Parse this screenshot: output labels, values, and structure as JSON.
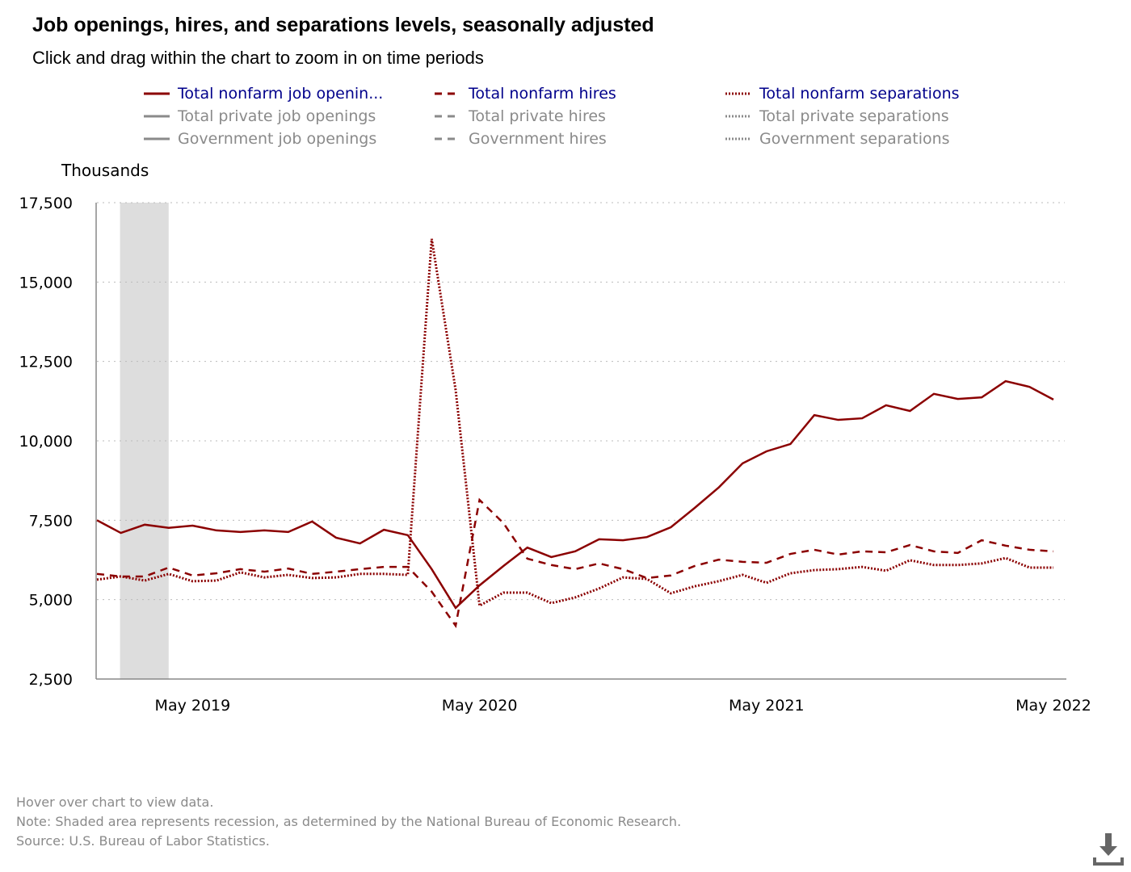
{
  "title": "Job openings, hires, and separations levels, seasonally adjusted",
  "subtitle": "Click and drag within the chart to zoom in on time periods",
  "legend": [
    {
      "label": "Total nonfarm job openin...",
      "style": "solid",
      "active": true
    },
    {
      "label": "Total nonfarm hires",
      "style": "dashed",
      "active": true
    },
    {
      "label": "Total nonfarm separations",
      "style": "dotted",
      "active": true
    },
    {
      "label": "Total private job openings",
      "style": "solid",
      "active": false
    },
    {
      "label": "Total private hires",
      "style": "dashed",
      "active": false
    },
    {
      "label": "Total private separations",
      "style": "dotted",
      "active": false
    },
    {
      "label": "Government job openings",
      "style": "solid",
      "active": false
    },
    {
      "label": "Government hires",
      "style": "dashed",
      "active": false
    },
    {
      "label": "Government separations",
      "style": "dotted",
      "active": false
    }
  ],
  "colors": {
    "series": "#8b0000",
    "active_text": "#00008b",
    "inactive": "#8a8a8a",
    "recession": "#dddddd"
  },
  "footer": {
    "hover": "Hover over chart to view data.",
    "note": "Note: Shaded area represents recession, as determined by the National Bureau of Economic Research.",
    "source": "Source: U.S. Bureau of Labor Statistics."
  },
  "chart_data": {
    "type": "line",
    "ylabel": "Thousands",
    "ylim": [
      2500,
      17500
    ],
    "yticks": [
      2500,
      5000,
      7500,
      10000,
      12500,
      15000,
      17500
    ],
    "ytick_labels": [
      "2,500",
      "5,000",
      "7,500",
      "10,000",
      "12,500",
      "15,000",
      "17,500"
    ],
    "xticks": [
      {
        "index": 4,
        "label": "May 2019"
      },
      {
        "index": 16,
        "label": "May 2020"
      },
      {
        "index": 28,
        "label": "May 2021"
      },
      {
        "index": 40,
        "label": "May 2022"
      }
    ],
    "x_start": "Jan 2019",
    "x_end": "May 2022",
    "recession": {
      "start_index": 1,
      "end_index": 3
    },
    "grid": true,
    "series": [
      {
        "name": "Total nonfarm job openings",
        "style": "solid",
        "values": [
          7500,
          7100,
          7360,
          7260,
          7330,
          7180,
          7130,
          7180,
          7130,
          7460,
          6950,
          6770,
          7200,
          7030,
          5960,
          4740,
          5450,
          6060,
          6640,
          6340,
          6520,
          6900,
          6870,
          6970,
          7280,
          7890,
          8530,
          9290,
          9670,
          9900,
          10810,
          10660,
          10710,
          11120,
          10940,
          11480,
          11320,
          11370,
          11880,
          11700,
          11300
        ]
      },
      {
        "name": "Total nonfarm hires",
        "style": "dashed",
        "values": [
          5810,
          5730,
          5730,
          6010,
          5760,
          5830,
          5960,
          5880,
          5980,
          5810,
          5880,
          5960,
          6030,
          6030,
          5250,
          4180,
          8140,
          7410,
          6290,
          6090,
          5960,
          6140,
          5960,
          5680,
          5760,
          6060,
          6260,
          6190,
          6160,
          6440,
          6570,
          6420,
          6520,
          6490,
          6720,
          6520,
          6470,
          6870,
          6700,
          6570,
          6520
        ]
      },
      {
        "name": "Total nonfarm separations",
        "style": "dotted",
        "values": [
          5630,
          5730,
          5600,
          5810,
          5580,
          5600,
          5860,
          5700,
          5780,
          5680,
          5700,
          5810,
          5810,
          5780,
          16360,
          11600,
          4810,
          5220,
          5220,
          4890,
          5070,
          5350,
          5700,
          5650,
          5200,
          5420,
          5580,
          5780,
          5530,
          5830,
          5930,
          5960,
          6030,
          5910,
          6240,
          6090,
          6090,
          6140,
          6310,
          6010,
          6010
        ]
      }
    ]
  }
}
